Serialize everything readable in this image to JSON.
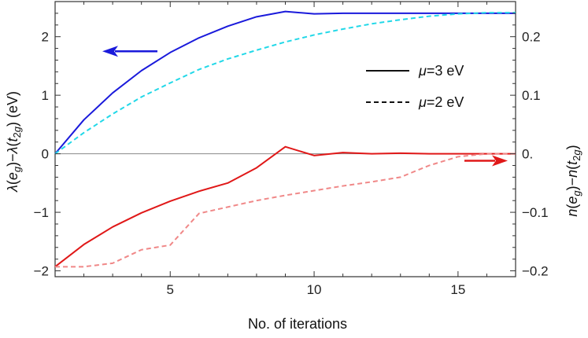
{
  "chart_data": {
    "type": "line",
    "xlabel": "No. of iterations",
    "ylabel_left": "λ(e_g)−λ(t_2g) (eV)",
    "ylabel_right": "n(e_g)−n(t_2g)",
    "xlim": [
      1,
      17
    ],
    "ylim_left": [
      -2.1,
      2.6
    ],
    "ylim_right": [
      -0.21,
      0.26
    ],
    "x_ticks": [
      5,
      10,
      15
    ],
    "y_ticks_left": [
      -2,
      -1,
      0,
      1,
      2
    ],
    "y_ticks_right": [
      -0.2,
      -0.1,
      0.0,
      0.1,
      0.2
    ],
    "x_tick_labels": [
      "5",
      "10",
      "15"
    ],
    "y_tick_labels_left": [
      "−2",
      "−1",
      "0",
      "1",
      "2"
    ],
    "y_tick_labels_right": [
      "−0.2",
      "−0.1",
      "0.",
      "0.1",
      "0.2"
    ],
    "legend": [
      {
        "label_prefix": "μ",
        "label_suffix": "=3 eV",
        "style": "solid"
      },
      {
        "label_prefix": "μ",
        "label_suffix": "=2 eV",
        "style": "dashed"
      }
    ],
    "series": [
      {
        "name": "lambda diff μ=3 eV",
        "axis": "left",
        "color": "#1a1adb",
        "style": "solid",
        "x": [
          1,
          2,
          3,
          4,
          5,
          6,
          7,
          8,
          9,
          10,
          11,
          12,
          13,
          14,
          15,
          16,
          17
        ],
        "values": [
          0.0,
          0.58,
          1.04,
          1.42,
          1.73,
          1.98,
          2.18,
          2.34,
          2.43,
          2.39,
          2.4,
          2.4,
          2.4,
          2.4,
          2.4,
          2.4,
          2.4
        ]
      },
      {
        "name": "lambda diff μ=2 eV",
        "axis": "left",
        "color": "#22d8e8",
        "style": "dashed",
        "x": [
          1,
          2,
          3,
          4,
          5,
          6,
          7,
          8,
          9,
          10,
          11,
          12,
          13,
          14,
          15,
          16,
          17
        ],
        "values": [
          0.0,
          0.36,
          0.68,
          0.97,
          1.21,
          1.44,
          1.62,
          1.77,
          1.91,
          2.03,
          2.13,
          2.22,
          2.29,
          2.35,
          2.39,
          2.41,
          2.41
        ]
      },
      {
        "name": "occupation diff μ=3 eV",
        "axis": "right",
        "color": "#e01818",
        "style": "solid",
        "x": [
          1,
          2,
          3,
          4,
          5,
          6,
          7,
          8,
          9,
          10,
          11,
          12,
          13,
          14,
          15,
          16,
          17
        ],
        "values": [
          -0.193,
          -0.155,
          -0.125,
          -0.101,
          -0.081,
          -0.064,
          -0.05,
          -0.024,
          0.012,
          -0.003,
          0.002,
          0.0,
          0.001,
          0.0,
          0.0,
          0.0,
          0.0
        ]
      },
      {
        "name": "occupation diff μ=2 eV",
        "axis": "right",
        "color": "#f08888",
        "style": "dashed",
        "x": [
          1,
          2,
          3,
          4,
          5,
          6,
          7,
          8,
          9,
          10,
          11,
          12,
          13,
          14,
          15,
          16,
          17
        ],
        "values": [
          -0.193,
          -0.193,
          -0.187,
          -0.164,
          -0.156,
          -0.102,
          -0.091,
          -0.08,
          -0.071,
          -0.063,
          -0.055,
          -0.048,
          -0.04,
          -0.02,
          -0.005,
          0.0,
          0.0
        ]
      }
    ],
    "annotations": [
      {
        "type": "arrow",
        "direction": "left",
        "color": "#1a1adb",
        "refers_to": "left axis"
      },
      {
        "type": "arrow",
        "direction": "right",
        "color": "#e01818",
        "refers_to": "right axis"
      }
    ]
  }
}
